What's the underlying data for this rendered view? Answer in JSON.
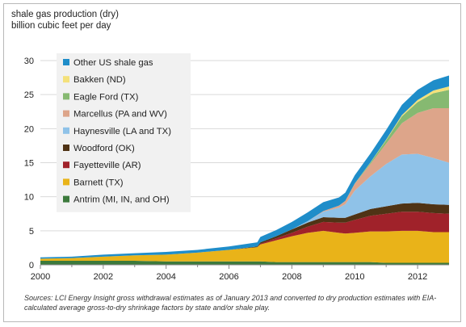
{
  "chart_data": {
    "type": "area",
    "title_lines": [
      "shale gas production (dry)",
      "billion cubic feet per day"
    ],
    "x_ticks": [
      "2000",
      "2002",
      "2004",
      "2006",
      "2008",
      "2010",
      "2012"
    ],
    "y_ticks": [
      "0",
      "5",
      "10",
      "15",
      "20",
      "25",
      "30"
    ],
    "ylim": [
      0,
      30
    ],
    "xlim": [
      2000,
      2013
    ],
    "stack_order": [
      "Antrim (MI, IN, and OH)",
      "Barnett (TX)",
      "Fayetteville (AR)",
      "Woodford (OK)",
      "Haynesville (LA and TX)",
      "Marcellus (PA and WV)",
      "Eagle Ford (TX)",
      "Bakken (ND)",
      "Other US shale gas"
    ],
    "x": [
      2000,
      2001,
      2002,
      2003,
      2004,
      2005,
      2006,
      2006.9,
      2007,
      2007.5,
      2008,
      2008.5,
      2009,
      2009.5,
      2009.7,
      2010,
      2010.5,
      2011,
      2011.5,
      2012,
      2012.5,
      2013
    ],
    "series": [
      {
        "name": "Antrim (MI, IN, and OH)",
        "color": "#3c7a3c",
        "values": [
          0.6,
          0.6,
          0.6,
          0.6,
          0.5,
          0.5,
          0.5,
          0.5,
          0.5,
          0.4,
          0.4,
          0.4,
          0.4,
          0.4,
          0.4,
          0.4,
          0.4,
          0.3,
          0.3,
          0.3,
          0.3,
          0.3
        ]
      },
      {
        "name": "Barnett (TX)",
        "color": "#e9b319",
        "values": [
          0.3,
          0.4,
          0.6,
          0.8,
          1.0,
          1.3,
          1.7,
          2.1,
          2.5,
          3.2,
          3.8,
          4.3,
          4.6,
          4.3,
          4.2,
          4.3,
          4.5,
          4.6,
          4.7,
          4.7,
          4.5,
          4.5
        ]
      },
      {
        "name": "Fayetteville (AR)",
        "color": "#a0222a",
        "values": [
          0,
          0,
          0,
          0,
          0,
          0,
          0,
          0,
          0.1,
          0.3,
          0.5,
          0.9,
          1.3,
          1.5,
          1.6,
          1.9,
          2.3,
          2.6,
          2.8,
          2.8,
          2.8,
          2.7
        ]
      },
      {
        "name": "Woodford (OK)",
        "color": "#4f3315",
        "values": [
          0,
          0,
          0,
          0,
          0,
          0,
          0,
          0.1,
          0.2,
          0.3,
          0.5,
          0.6,
          0.7,
          0.7,
          0.7,
          0.8,
          1.0,
          1.1,
          1.2,
          1.3,
          1.3,
          1.3
        ]
      },
      {
        "name": "Haynesville (LA and TX)",
        "color": "#8fc2e8",
        "values": [
          0,
          0,
          0,
          0,
          0,
          0,
          0,
          0,
          0,
          0,
          0,
          0.2,
          0.8,
          1.5,
          2.0,
          3.5,
          4.8,
          6.2,
          7.2,
          7.2,
          6.8,
          6.2
        ]
      },
      {
        "name": "Marcellus (PA and WV)",
        "color": "#dda58a",
        "values": [
          0,
          0,
          0,
          0,
          0,
          0,
          0,
          0,
          0,
          0,
          0,
          0,
          0.1,
          0.3,
          0.5,
          1.0,
          1.8,
          3.0,
          4.6,
          6.0,
          7.3,
          8.0
        ]
      },
      {
        "name": "Eagle Ford (TX)",
        "color": "#86b971",
        "values": [
          0,
          0,
          0,
          0,
          0,
          0,
          0,
          0,
          0,
          0,
          0,
          0,
          0,
          0,
          0,
          0.05,
          0.2,
          0.5,
          1.0,
          1.6,
          2.2,
          2.7
        ]
      },
      {
        "name": "Bakken (ND)",
        "color": "#f4e17a",
        "values": [
          0,
          0,
          0,
          0,
          0,
          0,
          0,
          0,
          0,
          0,
          0,
          0,
          0,
          0,
          0,
          0,
          0.05,
          0.1,
          0.2,
          0.3,
          0.4,
          0.5
        ]
      },
      {
        "name": "Other US shale gas",
        "color": "#1f8dc9",
        "values": [
          0.2,
          0.2,
          0.3,
          0.3,
          0.4,
          0.4,
          0.5,
          0.6,
          0.8,
          0.9,
          1.1,
          1.3,
          1.3,
          1.2,
          1.2,
          1.2,
          1.3,
          1.4,
          1.5,
          1.5,
          1.5,
          1.6
        ]
      }
    ],
    "legend_order": [
      "Other US shale gas",
      "Bakken (ND)",
      "Eagle Ford (TX)",
      "Marcellus (PA and WV)",
      "Haynesville (LA and TX)",
      "Woodford (OK)",
      "Fayetteville (AR)",
      "Barnett (TX)",
      "Antrim (MI, IN, and OH)"
    ],
    "legend_placement": "top-left",
    "grid": "horizontal"
  },
  "sources_text": "Sources:  LCI Energy Insight gross withdrawal estimates as of January 2013 and converted to dry production estimates with EIA-calculated average gross-to-dry shrinkage factors by state and/or shale play."
}
